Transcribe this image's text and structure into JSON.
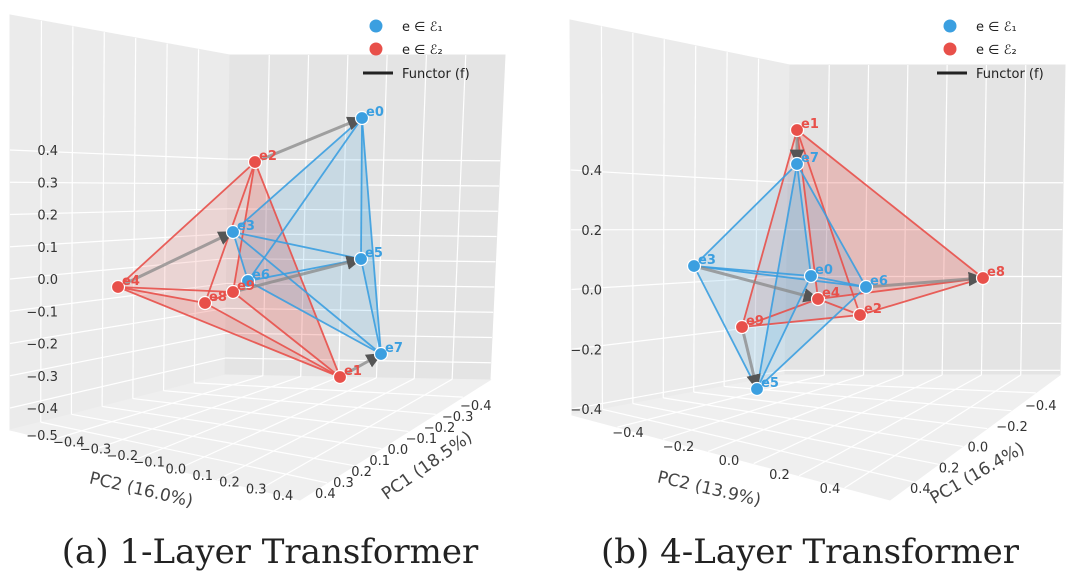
{
  "colors": {
    "e1": "#3b9fe0",
    "e2": "#e8504a",
    "functor": "#888888"
  },
  "chart_data": [
    {
      "type": "scatter",
      "caption": "(a) 1-Layer Transformer",
      "xlabel": "PC1 (18.5%)",
      "ylabel": "PC2 (16.0%)",
      "z_ticks": [
        "0.4",
        "0.3",
        "0.2",
        "0.1",
        "0.0",
        "−0.1",
        "−0.2",
        "−0.3",
        "−0.4"
      ],
      "x_ticks": [
        "−0.4",
        "−0.3",
        "−0.2",
        "−0.1",
        "0.0",
        "0.1",
        "0.2",
        "0.3",
        "0.4"
      ],
      "y_ticks": [
        "−0.5",
        "−0.4",
        "−0.3",
        "−0.2",
        "−0.1",
        "0.0",
        "0.1",
        "0.2",
        "0.3",
        "0.4"
      ],
      "legend": [
        "e ∈ ℰ₁",
        "e ∈ ℰ₂",
        "Functor (f)"
      ],
      "legend_position": "top-right",
      "series": [
        {
          "name": "e ∈ ℰ₁",
          "points": [
            {
              "label": "e0",
              "x": -0.05,
              "y": 0.45,
              "z": 0.42
            },
            {
              "label": "e3",
              "x": 0.05,
              "y": -0.25,
              "z": 0.13
            },
            {
              "label": "e5",
              "x": 0.1,
              "y": 0.35,
              "z": 0.05
            },
            {
              "label": "e6",
              "x": 0.2,
              "y": -0.15,
              "z": -0.03
            },
            {
              "label": "e7",
              "x": 0.05,
              "y": 0.45,
              "z": -0.25
            }
          ]
        },
        {
          "name": "e ∈ ℰ₂",
          "points": [
            {
              "label": "e2",
              "x": 0.0,
              "y": -0.2,
              "z": 0.38
            },
            {
              "label": "e4",
              "x": 0.3,
              "y": -0.5,
              "z": 0.05
            },
            {
              "label": "e8",
              "x": 0.35,
              "y": -0.25,
              "z": -0.05
            },
            {
              "label": "e9",
              "x": 0.25,
              "y": -0.15,
              "z": -0.03
            },
            {
              "label": "e1",
              "x": 0.15,
              "y": 0.35,
              "z": -0.35
            }
          ]
        }
      ],
      "functor_arrows": [
        [
          "e2",
          "e0"
        ],
        [
          "e4",
          "e3"
        ],
        [
          "e9",
          "e5"
        ],
        [
          "e1",
          "e7"
        ]
      ]
    },
    {
      "type": "scatter",
      "caption": "(b) 4-Layer Transformer",
      "xlabel": "PC1 (16.4%)",
      "ylabel": "PC2 (13.9%)",
      "z_ticks": [
        "0.4",
        "0.2",
        "0.0",
        "−0.2",
        "−0.4"
      ],
      "x_ticks": [
        "−0.4",
        "−0.2",
        "0.0",
        "0.2",
        "0.4"
      ],
      "y_ticks": [
        "−0.4",
        "−0.2",
        "0.0",
        "0.2",
        "0.4"
      ],
      "legend": [
        "e ∈ ℰ₁",
        "e ∈ ℰ₂",
        "Functor (f)"
      ],
      "legend_position": "top-right",
      "series": [
        {
          "name": "e ∈ ℰ₁",
          "points": [
            {
              "label": "e7",
              "x": 0.0,
              "y": -0.05,
              "z": 0.4
            },
            {
              "label": "e3",
              "x": -0.2,
              "y": -0.35,
              "z": 0.05
            },
            {
              "label": "e0",
              "x": 0.1,
              "y": 0.1,
              "z": 0.02
            },
            {
              "label": "e6",
              "x": 0.2,
              "y": 0.25,
              "z": 0.0
            },
            {
              "label": "e5",
              "x": 0.25,
              "y": -0.15,
              "z": -0.35
            }
          ]
        },
        {
          "name": "e ∈ ℰ₂",
          "points": [
            {
              "label": "e1",
              "x": 0.0,
              "y": -0.05,
              "z": 0.48
            },
            {
              "label": "e8",
              "x": -0.15,
              "y": 0.5,
              "z": 0.0
            },
            {
              "label": "e4",
              "x": 0.15,
              "y": 0.05,
              "z": -0.05
            },
            {
              "label": "e2",
              "x": 0.2,
              "y": 0.2,
              "z": -0.08
            },
            {
              "label": "e9",
              "x": 0.2,
              "y": -0.2,
              "z": -0.12
            }
          ]
        }
      ],
      "functor_arrows": [
        [
          "e1",
          "e7"
        ],
        [
          "e3",
          "e4"
        ],
        [
          "e6",
          "e8"
        ],
        [
          "e9",
          "e5"
        ]
      ]
    }
  ]
}
